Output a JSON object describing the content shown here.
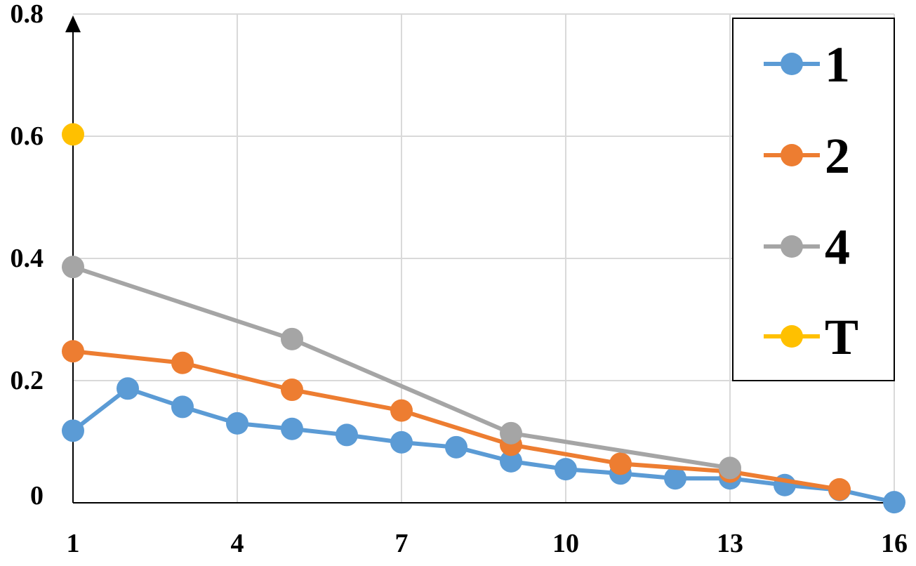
{
  "chart_data": {
    "type": "line",
    "title": "",
    "xlabel": "",
    "ylabel": "",
    "xlim": [
      1,
      16
    ],
    "ylim": [
      0,
      0.8
    ],
    "x_ticks": [
      1,
      4,
      7,
      10,
      13,
      16
    ],
    "x_tick_labels": [
      "1",
      "4",
      "7",
      "10",
      "13",
      "16"
    ],
    "y_ticks": [
      0,
      0.2,
      0.4,
      0.6,
      0.8
    ],
    "y_tick_labels": [
      "0",
      "0.2",
      "0.4",
      "0.6",
      "0.8"
    ],
    "grid": true,
    "legend_position": "top-right",
    "series": [
      {
        "name": "1",
        "color": "#5B9BD5",
        "x": [
          1,
          2,
          3,
          4,
          5,
          6,
          7,
          8,
          9,
          10,
          11,
          12,
          13,
          14,
          15,
          16
        ],
        "y": [
          0.118,
          0.187,
          0.157,
          0.13,
          0.121,
          0.111,
          0.099,
          0.091,
          0.068,
          0.055,
          0.048,
          0.04,
          0.04,
          0.029,
          0.021,
          0.001
        ]
      },
      {
        "name": "2",
        "color": "#ED7D31",
        "x": [
          1,
          3,
          5,
          7,
          9,
          11,
          13,
          15
        ],
        "y": [
          0.248,
          0.229,
          0.185,
          0.151,
          0.095,
          0.064,
          0.051,
          0.022
        ]
      },
      {
        "name": "4",
        "color": "#A5A5A5",
        "x": [
          1,
          5,
          9,
          13
        ],
        "y": [
          0.386,
          0.268,
          0.114,
          0.057
        ]
      },
      {
        "name": "T",
        "color": "#FFC000",
        "x": [
          1
        ],
        "y": [
          0.603
        ]
      }
    ]
  }
}
